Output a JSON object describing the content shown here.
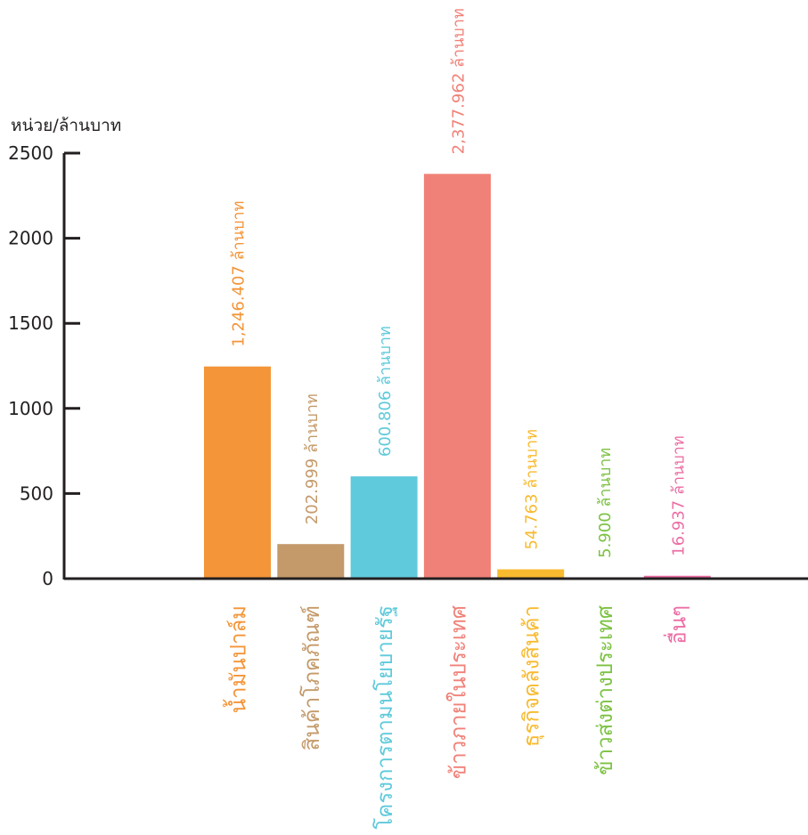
{
  "chart_data": {
    "type": "bar",
    "title": "",
    "xlabel": "",
    "ylabel": "หน่วย/ล้านบาท",
    "ylim": [
      0,
      2500
    ],
    "yticks": [
      "0",
      "500",
      "1000",
      "1500",
      "2000",
      "2500"
    ],
    "grid": false,
    "categories": [
      "น้ำมันปาล์ม",
      "สินค้าโภคภัณฑ์",
      "โครงการตามนโยบายรัฐ",
      "ข้าวภายในประเทศ",
      "ธุรกิจคลังสินค้า",
      "ข้าวส่งต่างประเทศ",
      "อื่นๆ"
    ],
    "values": [
      1246.407,
      202.999,
      600.806,
      2377.962,
      54.763,
      5.9,
      16.937
    ],
    "data_labels": [
      "1,246.407 ล้านบาท",
      "202.999 ล้านบาท",
      "600.806 ล้านบาท",
      "2,377.962 ล้านบาท",
      "54.763 ล้านบาท",
      "5.900 ล้านบาท",
      "16.937 ล้านบาท"
    ],
    "colors": [
      "#F39538",
      "#C49A6A",
      "#5FCADB",
      "#F08178",
      "#F8BA2F",
      "#7CC242",
      "#EC6FA5"
    ],
    "axis_color": "#231F20"
  }
}
